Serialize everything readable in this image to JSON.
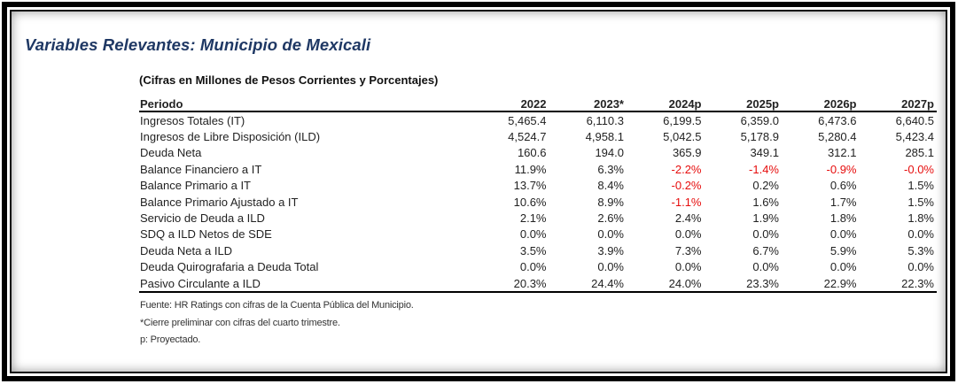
{
  "title": "Variables Relevantes: Municipio de Mexicali",
  "subtitle": "(Cifras en Millones de Pesos Corrientes y Porcentajes)",
  "table": {
    "period_header": "Periodo",
    "years": [
      "2022",
      "2023*",
      "2024p",
      "2025p",
      "2026p",
      "2027p"
    ],
    "rows": [
      {
        "label": "Ingresos Totales (IT)",
        "values": [
          "5,465.4",
          "6,110.3",
          "6,199.5",
          "6,359.0",
          "6,473.6",
          "6,640.5"
        ]
      },
      {
        "label": "Ingresos de Libre Disposición (ILD)",
        "values": [
          "4,524.7",
          "4,958.1",
          "5,042.5",
          "5,178.9",
          "5,280.4",
          "5,423.4"
        ]
      },
      {
        "label": "Deuda Neta",
        "values": [
          "160.6",
          "194.0",
          "365.9",
          "349.1",
          "312.1",
          "285.1"
        ]
      },
      {
        "label": "Balance Financiero a IT",
        "values": [
          "11.9%",
          "6.3%",
          "-2.2%",
          "-1.4%",
          "-0.9%",
          "-0.0%"
        ]
      },
      {
        "label": "Balance Primario a IT",
        "values": [
          "13.7%",
          "8.4%",
          "-0.2%",
          "0.2%",
          "0.6%",
          "1.5%"
        ]
      },
      {
        "label": "Balance Primario Ajustado a IT",
        "values": [
          "10.6%",
          "8.9%",
          "-1.1%",
          "1.6%",
          "1.7%",
          "1.5%"
        ]
      },
      {
        "label": "Servicio de Deuda a ILD",
        "values": [
          "2.1%",
          "2.6%",
          "2.4%",
          "1.9%",
          "1.8%",
          "1.8%"
        ]
      },
      {
        "label": "SDQ a ILD Netos de SDE",
        "values": [
          "0.0%",
          "0.0%",
          "0.0%",
          "0.0%",
          "0.0%",
          "0.0%"
        ]
      },
      {
        "label": "Deuda Neta a ILD",
        "values": [
          "3.5%",
          "3.9%",
          "7.3%",
          "6.7%",
          "5.9%",
          "5.3%"
        ]
      },
      {
        "label": "Deuda Quirografaria a Deuda Total",
        "values": [
          "0.0%",
          "0.0%",
          "0.0%",
          "0.0%",
          "0.0%",
          "0.0%"
        ]
      },
      {
        "label": "Pasivo Circulante a ILD",
        "values": [
          "20.3%",
          "24.4%",
          "24.0%",
          "23.3%",
          "22.9%",
          "22.3%"
        ]
      }
    ]
  },
  "footnotes": [
    "Fuente: HR Ratings con cifras de la Cuenta Pública del Municipio.",
    "*Cierre preliminar con cifras del cuarto trimestre.",
    "p: Proyectado."
  ],
  "colors": {
    "title": "#1F3864",
    "text": "#222222",
    "negative": "#E60D0D"
  }
}
